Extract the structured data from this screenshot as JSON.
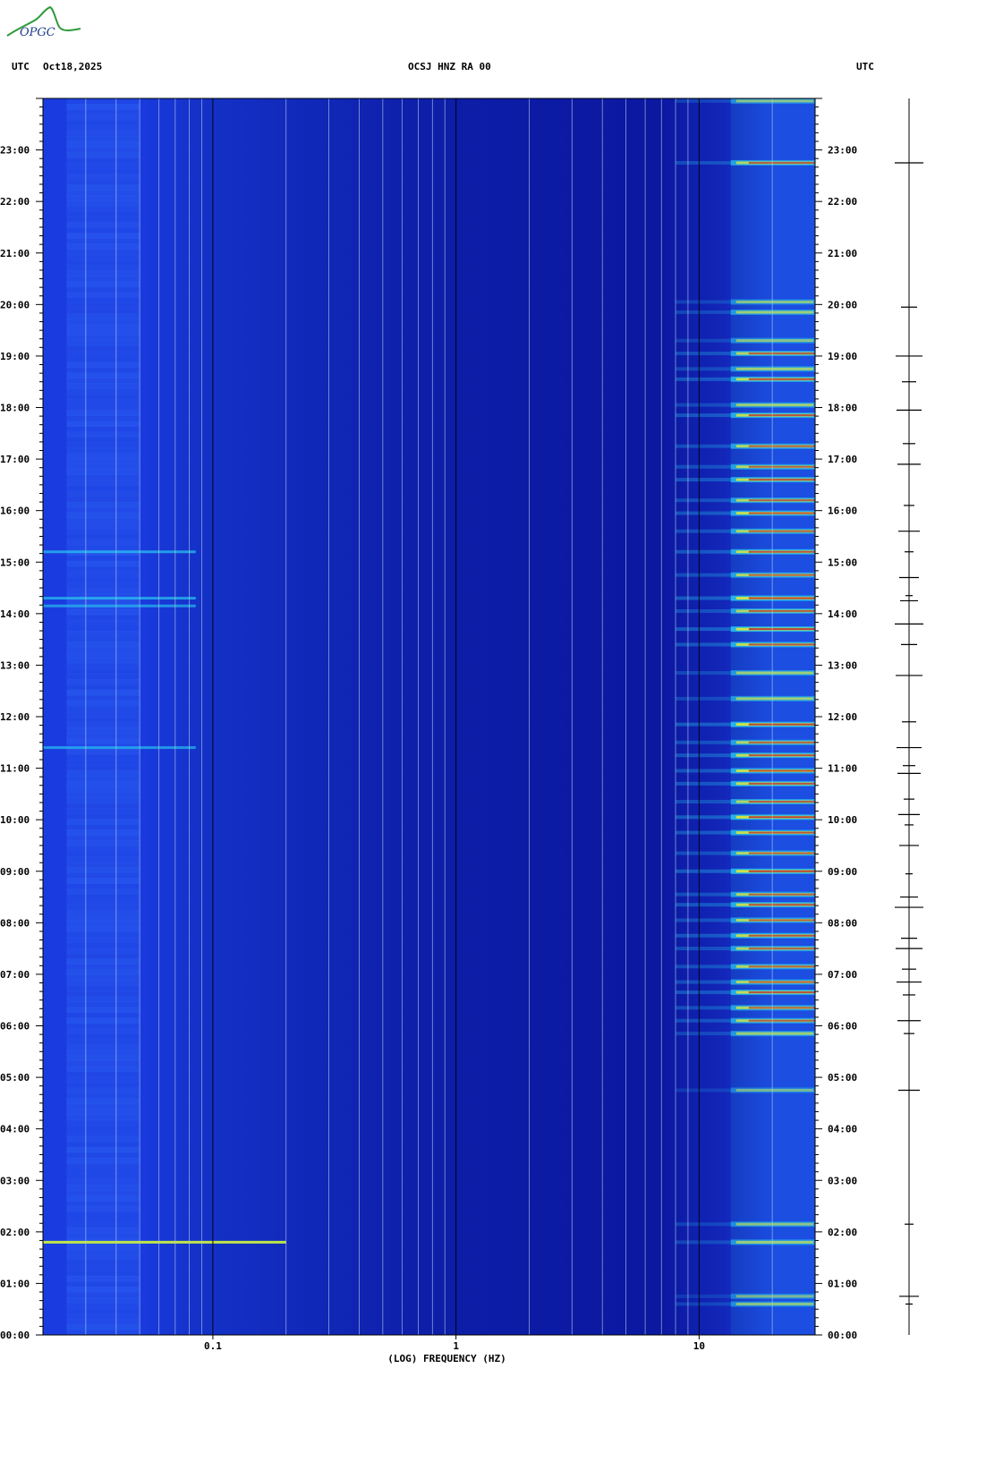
{
  "header": {
    "left_tz": "UTC",
    "date": "Oct18,2025",
    "station": "OCSJ HNZ RA 00",
    "right_tz": "UTC"
  },
  "logo": {
    "text": "OPGC"
  },
  "colors": {
    "background_low": "#0a14a0",
    "background_mid": "#1638d8",
    "high": "#c81e1e",
    "mid": "#e8e830",
    "low": "#28c8f0"
  },
  "chart_data": {
    "type": "heatmap",
    "title": "",
    "xlabel": "(LOG) FREQUENCY (HZ)",
    "ylabel": "",
    "x_scale": "log",
    "xlim": [
      0.02,
      30
    ],
    "x_ticks": [
      {
        "value": 0.1,
        "label": "0.1"
      },
      {
        "value": 1,
        "label": "1"
      },
      {
        "value": 10,
        "label": "10"
      }
    ],
    "ylim_hours_utc": [
      0,
      24
    ],
    "y_ticks_left": [
      "00:00",
      "01:00",
      "02:00",
      "03:00",
      "04:00",
      "05:00",
      "06:00",
      "07:00",
      "08:00",
      "09:00",
      "10:00",
      "11:00",
      "12:00",
      "13:00",
      "14:00",
      "15:00",
      "16:00",
      "17:00",
      "18:00",
      "19:00",
      "20:00",
      "21:00",
      "22:00",
      "23:00"
    ],
    "y_ticks_right": [
      "00:00",
      "01:00",
      "02:00",
      "03:00",
      "04:00",
      "05:00",
      "06:00",
      "07:00",
      "08:00",
      "09:00",
      "10:00",
      "11:00",
      "12:00",
      "13:00",
      "14:00",
      "15:00",
      "16:00",
      "17:00",
      "18:00",
      "19:00",
      "20:00",
      "21:00",
      "22:00",
      "23:00"
    ],
    "high_frequency_events": [
      {
        "hour": 0.6,
        "level": 0.6
      },
      {
        "hour": 0.75,
        "level": 0.5
      },
      {
        "hour": 1.8,
        "level": 0.7
      },
      {
        "hour": 2.15,
        "level": 0.6
      },
      {
        "hour": 4.75,
        "level": 0.5
      },
      {
        "hour": 5.85,
        "level": 0.7
      },
      {
        "hour": 6.1,
        "level": 0.8
      },
      {
        "hour": 6.35,
        "level": 0.8
      },
      {
        "hour": 6.65,
        "level": 0.9
      },
      {
        "hour": 6.85,
        "level": 0.8
      },
      {
        "hour": 7.15,
        "level": 0.8
      },
      {
        "hour": 7.5,
        "level": 0.8
      },
      {
        "hour": 7.75,
        "level": 0.9
      },
      {
        "hour": 8.05,
        "level": 0.8
      },
      {
        "hour": 8.35,
        "level": 0.9
      },
      {
        "hour": 8.55,
        "level": 0.8
      },
      {
        "hour": 9.0,
        "level": 1.0
      },
      {
        "hour": 9.35,
        "level": 0.8
      },
      {
        "hour": 9.75,
        "level": 0.9
      },
      {
        "hour": 10.05,
        "level": 1.0
      },
      {
        "hour": 10.35,
        "level": 0.8
      },
      {
        "hour": 10.7,
        "level": 0.9
      },
      {
        "hour": 10.95,
        "level": 0.9
      },
      {
        "hour": 11.25,
        "level": 0.9
      },
      {
        "hour": 11.5,
        "level": 0.8
      },
      {
        "hour": 11.85,
        "level": 1.0
      },
      {
        "hour": 12.35,
        "level": 0.7
      },
      {
        "hour": 12.85,
        "level": 0.7
      },
      {
        "hour": 13.4,
        "level": 0.9
      },
      {
        "hour": 13.7,
        "level": 1.0
      },
      {
        "hour": 14.05,
        "level": 0.8
      },
      {
        "hour": 14.3,
        "level": 1.0
      },
      {
        "hour": 14.75,
        "level": 0.8
      },
      {
        "hour": 15.2,
        "level": 0.9
      },
      {
        "hour": 15.6,
        "level": 0.8
      },
      {
        "hour": 15.95,
        "level": 0.9
      },
      {
        "hour": 16.2,
        "level": 0.8
      },
      {
        "hour": 16.6,
        "level": 0.9
      },
      {
        "hour": 16.85,
        "level": 0.8
      },
      {
        "hour": 17.25,
        "level": 0.8
      },
      {
        "hour": 17.85,
        "level": 0.9
      },
      {
        "hour": 18.05,
        "level": 0.7
      },
      {
        "hour": 18.55,
        "level": 0.9
      },
      {
        "hour": 18.75,
        "level": 0.7
      },
      {
        "hour": 19.05,
        "level": 0.8
      },
      {
        "hour": 19.3,
        "level": 0.6
      },
      {
        "hour": 19.85,
        "level": 0.7
      },
      {
        "hour": 20.05,
        "level": 0.6
      },
      {
        "hour": 22.75,
        "level": 0.8
      },
      {
        "hour": 23.95,
        "level": 0.6
      }
    ],
    "low_frequency_events": [
      {
        "hour": 1.8,
        "level": 0.9
      },
      {
        "hour": 11.4,
        "level": 0.3
      },
      {
        "hour": 14.15,
        "level": 0.3
      },
      {
        "hour": 14.3,
        "level": 0.4
      },
      {
        "hour": 15.2,
        "level": 0.4
      }
    ],
    "trace_event_hours": [
      0.6,
      0.75,
      2.15,
      4.75,
      5.85,
      6.1,
      6.6,
      6.85,
      7.1,
      7.5,
      7.7,
      8.3,
      8.5,
      8.95,
      9.5,
      9.9,
      10.1,
      10.4,
      10.9,
      11.05,
      11.4,
      11.9,
      12.8,
      13.4,
      13.8,
      14.25,
      14.35,
      14.7,
      15.2,
      15.6,
      16.1,
      16.9,
      17.3,
      17.95,
      18.5,
      19.0,
      19.95,
      22.75
    ]
  }
}
